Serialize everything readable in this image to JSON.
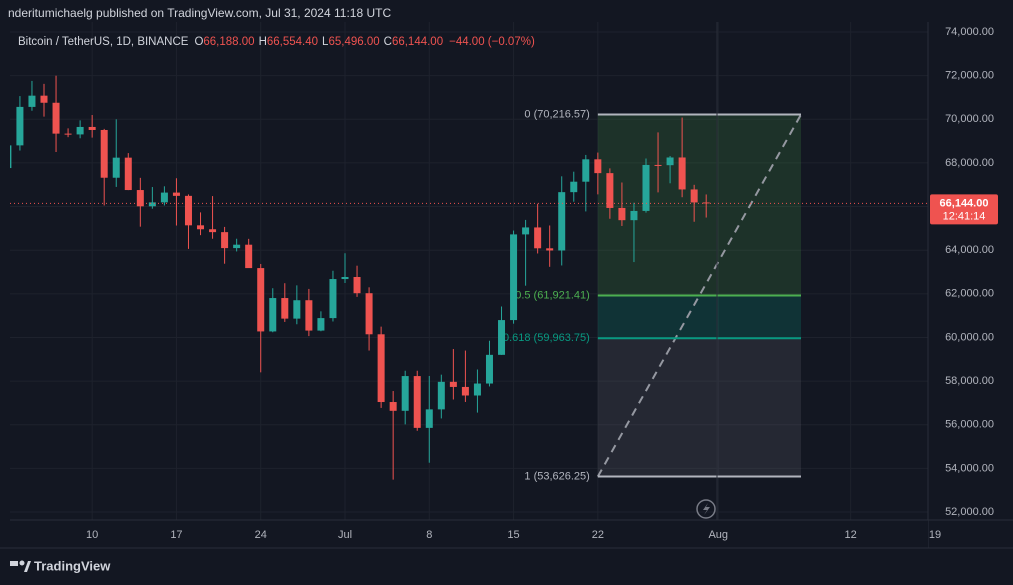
{
  "header": {
    "published": "nderitumichaelg published on TradingView.com, Jul 31, 2024 11:18 UTC"
  },
  "footer": {
    "brand": "TradingView"
  },
  "chart_data": {
    "type": "candlestick",
    "symbol": "Bitcoin / TetherUS, 1D, BINANCE",
    "ohlc_header": [
      {
        "key": "O",
        "text": "66,188.00"
      },
      {
        "key": "H",
        "text": "66,554.40"
      },
      {
        "key": "L",
        "text": "65,496.00"
      },
      {
        "key": "C",
        "text": "66,144.00"
      }
    ],
    "change": "−44.00 (−0.07%)",
    "up_color": "#26a69a",
    "down_color": "#ef5350",
    "categories": [
      "Jun 3",
      "Jun 4",
      "Jun 5",
      "Jun 6",
      "Jun 7",
      "Jun 8",
      "Jun 9",
      "Jun 10",
      "Jun 11",
      "Jun 12",
      "Jun 13",
      "Jun 14",
      "Jun 15",
      "Jun 16",
      "Jun 17",
      "Jun 18",
      "Jun 19",
      "Jun 20",
      "Jun 21",
      "Jun 22",
      "Jun 23",
      "Jun 24",
      "Jun 25",
      "Jun 26",
      "Jun 27",
      "Jun 28",
      "Jun 29",
      "Jun 30",
      "Jul 1",
      "Jul 2",
      "Jul 3",
      "Jul 4",
      "Jul 5",
      "Jul 6",
      "Jul 7",
      "Jul 8",
      "Jul 9",
      "Jul 10",
      "Jul 11",
      "Jul 12",
      "Jul 13",
      "Jul 14",
      "Jul 15",
      "Jul 16",
      "Jul 17",
      "Jul 18",
      "Jul 19",
      "Jul 20",
      "Jul 21",
      "Jul 22",
      "Jul 23",
      "Jul 24",
      "Jul 25",
      "Jul 26",
      "Jul 27",
      "Jul 28",
      "Jul 29",
      "Jul 30",
      "Jul 31"
    ],
    "open": [
      67765,
      68804,
      70567,
      71082,
      70757,
      69342,
      69306,
      69648,
      69509,
      67321,
      68241,
      66757,
      66012,
      66192,
      66640,
      66490,
      65140,
      64960,
      64828,
      64096,
      64252,
      63180,
      60277,
      61807,
      60864,
      61707,
      60316,
      60888,
      62678,
      62772,
      62029,
      60146,
      57042,
      56639,
      58231,
      55857,
      56705,
      57967,
      57733,
      57341,
      57889,
      59204,
      60797,
      64724,
      65043,
      64087,
      63987,
      66660,
      67139,
      68165,
      67532,
      65936,
      65376,
      65799,
      67907,
      67896,
      68249,
      66784,
      66188
    ],
    "high": [
      70288,
      71063,
      71758,
      71625,
      71997,
      69584,
      69950,
      70195,
      69560,
      69999,
      68450,
      67316,
      66895,
      66928,
      67298,
      66556,
      65733,
      66480,
      65067,
      64525,
      64520,
      63369,
      62258,
      62487,
      62389,
      62225,
      61198,
      63058,
      63862,
      63290,
      62299,
      60497,
      57546,
      58475,
      58475,
      58236,
      58296,
      59470,
      59400,
      58533,
      59850,
      61420,
      64900,
      65388,
      66128,
      65133,
      67386,
      67598,
      68366,
      68474,
      67750,
      67102,
      66175,
      68200,
      69399,
      68318,
      70079,
      66996,
      66554.4
    ],
    "low": [
      67612,
      68567,
      70390,
      70119,
      68500,
      69180,
      69130,
      69160,
      66051,
      66900,
      66753,
      65078,
      65901,
      66050,
      65130,
      64060,
      64690,
      64525,
      63380,
      63943,
      63209,
      58402,
      60239,
      60712,
      60606,
      60063,
      60285,
      60733,
      62498,
      61861,
      59400,
      56771,
      53485,
      56018,
      55724,
      54260,
      56290,
      57157,
      57045,
      56557,
      57756,
      59204,
      60632,
      62373,
      63850,
      63238,
      63300,
      66222,
      65777,
      66559,
      65441,
      65111,
      63456,
      65722,
      66650,
      67066,
      66428,
      65303,
      65496
    ],
    "close": [
      68804,
      70567,
      71082,
      70757,
      69342,
      69306,
      69648,
      69509,
      67321,
      68241,
      66757,
      66012,
      66192,
      66640,
      66490,
      65140,
      64960,
      64828,
      64096,
      64252,
      63180,
      60277,
      61807,
      60864,
      61707,
      60316,
      60888,
      62678,
      62772,
      62029,
      60146,
      57042,
      56639,
      58231,
      55857,
      56705,
      57967,
      57733,
      57341,
      57889,
      59204,
      60797,
      64724,
      65043,
      64087,
      63987,
      66660,
      67139,
      68165,
      67532,
      65936,
      65376,
      65799,
      67907,
      67896,
      68249,
      66784,
      66188,
      66144
    ],
    "last_price": 66144,
    "last_price_label": "66,144.00",
    "countdown": "12:41:14",
    "ylim": [
      51635,
      74458
    ],
    "yticks": [
      {
        "value": 52000,
        "label": "52,000.00"
      },
      {
        "value": 54000,
        "label": "54,000.00"
      },
      {
        "value": 56000,
        "label": "56,000.00"
      },
      {
        "value": 58000,
        "label": "58,000.00"
      },
      {
        "value": 60000,
        "label": "60,000.00"
      },
      {
        "value": 62000,
        "label": "62,000.00"
      },
      {
        "value": 64000,
        "label": "64,000.00"
      },
      {
        "value": 66000,
        "label": "66,000.00"
      },
      {
        "value": 68000,
        "label": "68,000.00"
      },
      {
        "value": 70000,
        "label": "70,000.00"
      },
      {
        "value": 72000,
        "label": "72,000.00"
      },
      {
        "value": 74000,
        "label": "74,000.00"
      }
    ],
    "xticks": [
      {
        "value": "Jun 10",
        "label": "10"
      },
      {
        "value": "Jun 17",
        "label": "17"
      },
      {
        "value": "Jun 24",
        "label": "24"
      },
      {
        "value": "Jul 1",
        "label": "Jul"
      },
      {
        "value": "Jul 8",
        "label": "8"
      },
      {
        "value": "Jul 15",
        "label": "15"
      },
      {
        "value": "Jul 22",
        "label": "22"
      },
      {
        "value": "Aug 1",
        "label": "Aug"
      },
      {
        "value": "Aug 12",
        "label": "12"
      },
      {
        "value": "Aug 19",
        "label": "19"
      }
    ],
    "fib": [
      {
        "value": 70216.57,
        "label": "0 (70,216.57)",
        "color": "#b2b5be"
      },
      {
        "value": 61921.41,
        "label": "0.5 (61,921.41)",
        "color": "#4caf50"
      },
      {
        "value": 59963.75,
        "label": "0.618 (59,963.75)",
        "color": "#089981"
      },
      {
        "value": 53626.25,
        "label": "1 (53,626.25)",
        "color": "#b2b5be"
      }
    ]
  }
}
